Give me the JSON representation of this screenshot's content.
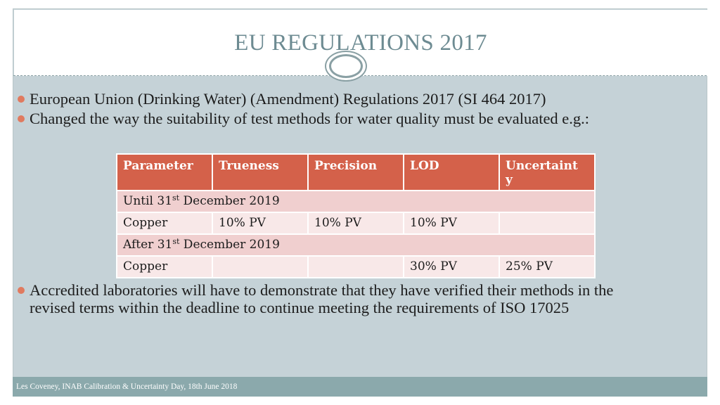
{
  "slide": {
    "title": "EU REGULATIONS 2017",
    "bullets": [
      "European Union (Drinking Water) (Amendment) Regulations 2017 (SI 464 2017)",
      "Changed the way the suitability of test methods for water quality must be evaluated e.g.:",
      "Accredited laboratories will have to demonstrate that they have verified their methods in the revised terms within the deadline to continue meeting the requirements of ISO 17025"
    ],
    "table": {
      "headers": [
        "Parameter",
        "Trueness",
        "Precision",
        "LOD",
        "Uncertaint y"
      ],
      "section1": {
        "prefix": "Until 31",
        "sup": "st",
        "suffix": " December 2019"
      },
      "row1": [
        "Copper",
        "10% PV",
        "10% PV",
        "10% PV",
        ""
      ],
      "section2": {
        "prefix": "After 31",
        "sup": "st",
        "suffix": " December 2019"
      },
      "row2": [
        "Copper",
        "",
        "",
        "30% PV",
        "25% PV"
      ]
    },
    "footer": "Les Coveney, INAB Calibration & Uncertainty Day, 18th June 2018"
  }
}
